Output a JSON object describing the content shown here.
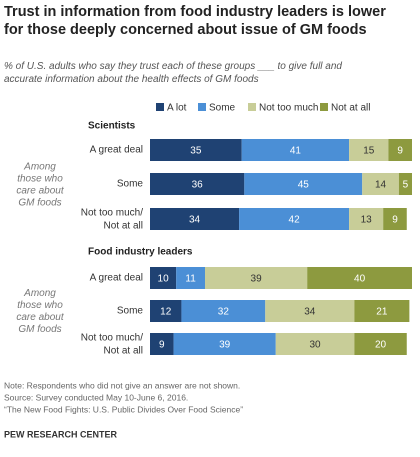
{
  "title": "Trust in information from food industry leaders is lower\nfor those deeply concerned about issue of GM foods",
  "subtitle": "% of U.S. adults who say they trust each of these groups ___ to give full and\naccurate information about the health effects of GM foods",
  "notes": [
    "Note: Respondents who did not give an answer are not shown.",
    "Source: Survey conducted May 10-June 6, 2016.",
    "“The New Food Fights: U.S. Public Divides Over Food Science”"
  ],
  "source_org": "PEW RESEARCH CENTER",
  "chart_data": [
    {
      "type": "bar",
      "orientation": "horizontal",
      "stacked": true,
      "title": "Scientists",
      "group_label": "Among\nthose who\ncare about\nGM foods",
      "categories": [
        "A great deal",
        "Some",
        "Not too much/\nNot at all"
      ],
      "series": [
        {
          "name": "A lot",
          "color": "#1f4273",
          "values": [
            35,
            36,
            34
          ]
        },
        {
          "name": "Some",
          "color": "#4b8fd6",
          "values": [
            41,
            45,
            42
          ]
        },
        {
          "name": "Not too much",
          "color": "#c8cd98",
          "values": [
            15,
            14,
            13
          ]
        },
        {
          "name": "Not at all",
          "color": "#8d9a3f",
          "values": [
            9,
            5,
            9
          ]
        }
      ]
    },
    {
      "type": "bar",
      "orientation": "horizontal",
      "stacked": true,
      "title": "Food industry leaders",
      "group_label": "Among\nthose who\ncare about\nGM foods",
      "categories": [
        "A great deal",
        "Some",
        "Not too much/\nNot at all"
      ],
      "series": [
        {
          "color": "#1f4273",
          "values": [
            10,
            12,
            9
          ]
        },
        {
          "color": "#4b8fd6",
          "values": [
            11,
            32,
            39
          ]
        },
        {
          "color": "#c8cd98",
          "values": [
            39,
            34,
            30
          ]
        },
        {
          "color": "#8d9a3f",
          "values": [
            40,
            21,
            20
          ]
        }
      ]
    }
  ]
}
